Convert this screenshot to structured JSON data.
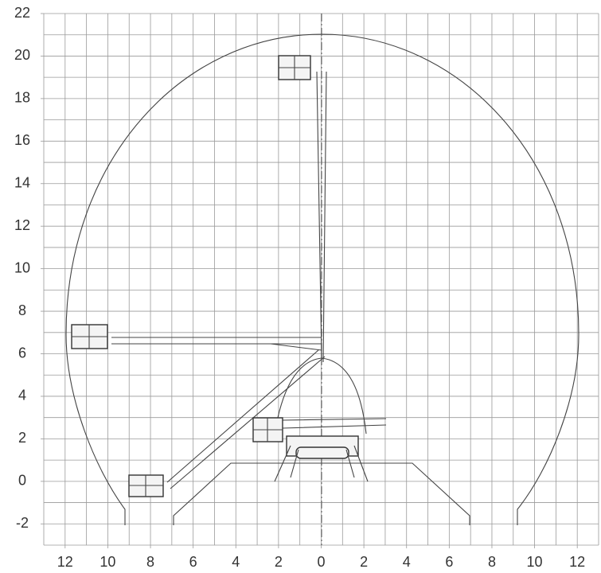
{
  "chart_data": {
    "type": "working-range",
    "xlim": [
      -13,
      13
    ],
    "ylim": [
      -3,
      22
    ],
    "xticks": [
      {
        "value": -12,
        "label": "12"
      },
      {
        "value": -10,
        "label": "10"
      },
      {
        "value": -8,
        "label": "8"
      },
      {
        "value": -6,
        "label": "6"
      },
      {
        "value": -4,
        "label": "4"
      },
      {
        "value": -2,
        "label": "2"
      },
      0,
      2,
      4,
      6,
      8,
      10,
      12
    ],
    "yticks": [
      -2,
      0,
      2,
      4,
      6,
      8,
      10,
      12,
      14,
      16,
      18,
      20,
      22
    ],
    "grid": true,
    "minor_xgrid": [
      -13,
      -12,
      -11,
      -10,
      -9,
      -8,
      -7,
      -6,
      -5,
      -4,
      -3,
      -2,
      -1,
      0,
      1,
      2,
      3,
      4,
      5,
      6,
      7,
      8,
      9,
      10,
      11,
      12,
      13
    ],
    "minor_ygrid": [
      -3,
      -2,
      -1,
      0,
      1,
      2,
      3,
      4,
      5,
      6,
      7,
      8,
      9,
      10,
      11,
      12,
      13,
      14,
      15,
      16,
      17,
      18,
      19,
      20,
      21,
      22
    ]
  }
}
